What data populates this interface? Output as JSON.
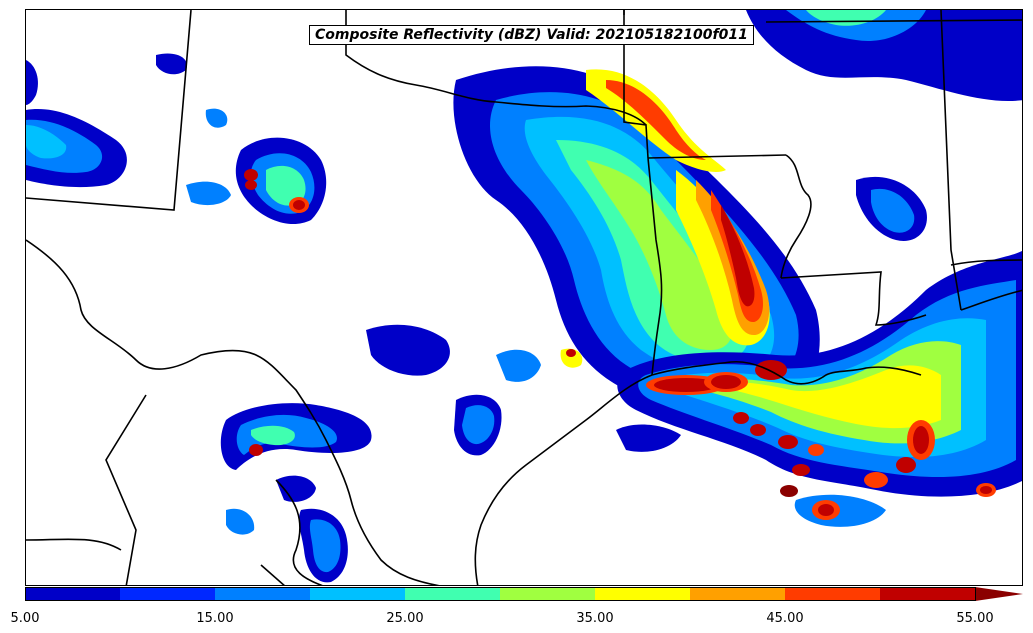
{
  "title": "Composite Reflectivity (dBZ) Valid: 202105182100f011",
  "colorbar": {
    "tick_labels": [
      "5.00",
      "15.00",
      "25.00",
      "35.00",
      "45.00",
      "55.00"
    ],
    "colors": [
      "#0000c8",
      "#0028ff",
      "#0080ff",
      "#00c0ff",
      "#40ffb0",
      "#a0ff40",
      "#ffff00",
      "#ffa000",
      "#ff3c00",
      "#c00000"
    ],
    "extend_color": "#8b0000"
  }
}
